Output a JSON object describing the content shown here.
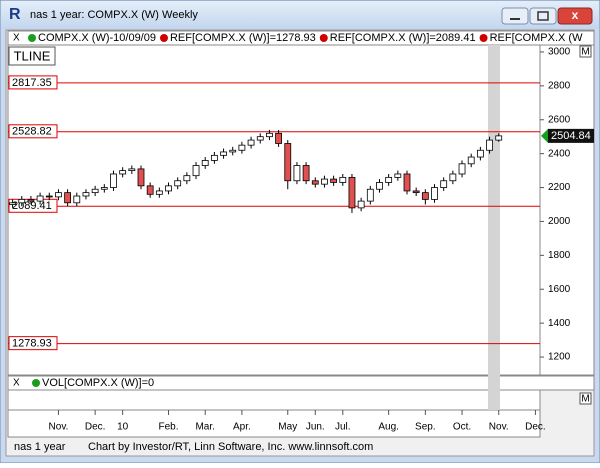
{
  "window": {
    "title": "nas 1 year: COMPX.X (W) Weekly"
  },
  "legend": [
    "COMPX.X (W)-10/09/09",
    "REF[COMPX.X (W)]=1278.93",
    "REF[COMPX.X (W)]=2089.41",
    "REF[COMPX.X (W"
  ],
  "tline_label": "TLINE",
  "volume_legend": "VOL[COMPX.X (W)]=0",
  "axis_markers": [
    "M",
    "M"
  ],
  "footer": {
    "left": "nas 1 year",
    "credit": "Chart by Investor/RT, Linn Software, Inc. www.linnsoft.com"
  },
  "chart_data": {
    "type": "candlestick",
    "categories": [
      null,
      null,
      null,
      null,
      null,
      "Nov.",
      null,
      null,
      null,
      "Dec.",
      null,
      null,
      "10",
      null,
      null,
      null,
      null,
      "Feb.",
      null,
      null,
      null,
      "Mar.",
      null,
      null,
      null,
      "Apr.",
      null,
      null,
      null,
      null,
      "May",
      null,
      null,
      "Jun.",
      null,
      null,
      "Jul.",
      null,
      null,
      null,
      null,
      "Aug.",
      null,
      null,
      null,
      "Sep.",
      null,
      null,
      null,
      "Oct.",
      null,
      null,
      null,
      "Nov.",
      null,
      null,
      null,
      "Dec."
    ],
    "open": [
      2100,
      2110,
      2130,
      2120,
      2150,
      2145,
      2170,
      2110,
      2150,
      2170,
      2190,
      2200,
      2280,
      2300,
      2310,
      2210,
      2160,
      2180,
      2210,
      2240,
      2270,
      2330,
      2360,
      2390,
      2410,
      2420,
      2450,
      2480,
      2500,
      2520,
      2460,
      2240,
      2330,
      2240,
      2220,
      2250,
      2230,
      2260,
      2080,
      2120,
      2190,
      2230,
      2260,
      2280,
      2180,
      2170,
      2130,
      2200,
      2240,
      2280,
      2340,
      2380,
      2420,
      2480,
      null,
      null,
      null,
      null
    ],
    "high": [
      2130,
      2150,
      2150,
      2170,
      2170,
      2190,
      2190,
      2170,
      2190,
      2210,
      2220,
      2300,
      2320,
      2330,
      2330,
      2230,
      2200,
      2230,
      2260,
      2290,
      2350,
      2380,
      2410,
      2430,
      2440,
      2470,
      2500,
      2520,
      2540,
      2540,
      2480,
      2350,
      2350,
      2260,
      2270,
      2270,
      2280,
      2280,
      2140,
      2210,
      2250,
      2280,
      2300,
      2300,
      2200,
      2190,
      2220,
      2260,
      2300,
      2360,
      2400,
      2440,
      2500,
      2520,
      null,
      null,
      null,
      null
    ],
    "low": [
      2080,
      2090,
      2100,
      2100,
      2125,
      2125,
      2090,
      2090,
      2130,
      2150,
      2170,
      2180,
      2260,
      2280,
      2190,
      2140,
      2140,
      2160,
      2190,
      2220,
      2250,
      2310,
      2340,
      2370,
      2390,
      2400,
      2430,
      2460,
      2480,
      2440,
      2190,
      2220,
      2220,
      2200,
      2200,
      2210,
      2210,
      2050,
      2060,
      2100,
      2170,
      2210,
      2240,
      2160,
      2150,
      2100,
      2110,
      2180,
      2220,
      2260,
      2320,
      2360,
      2400,
      2470,
      null,
      null,
      null,
      null
    ],
    "close": [
      2110,
      2130,
      2120,
      2150,
      2145,
      2170,
      2110,
      2150,
      2170,
      2190,
      2200,
      2280,
      2300,
      2310,
      2210,
      2160,
      2180,
      2210,
      2240,
      2270,
      2330,
      2360,
      2390,
      2410,
      2420,
      2450,
      2480,
      2500,
      2520,
      2460,
      2240,
      2330,
      2240,
      2220,
      2250,
      2230,
      2260,
      2080,
      2120,
      2190,
      2230,
      2260,
      2280,
      2180,
      2170,
      2130,
      2200,
      2240,
      2280,
      2340,
      2380,
      2420,
      2480,
      2504.84,
      null,
      null,
      null,
      null
    ],
    "up_color": "#ffffff",
    "down_color": "#e05050",
    "ref_color": "#e00000",
    "ref_lines": [
      2817.35,
      2528.82,
      2089.41,
      1278.93
    ],
    "last_price": 2504.84,
    "ylim": [
      1094,
      3041
    ],
    "yticks": [
      1200,
      1400,
      1600,
      1800,
      2000,
      2200,
      2400,
      2600,
      2800,
      3000
    ]
  }
}
